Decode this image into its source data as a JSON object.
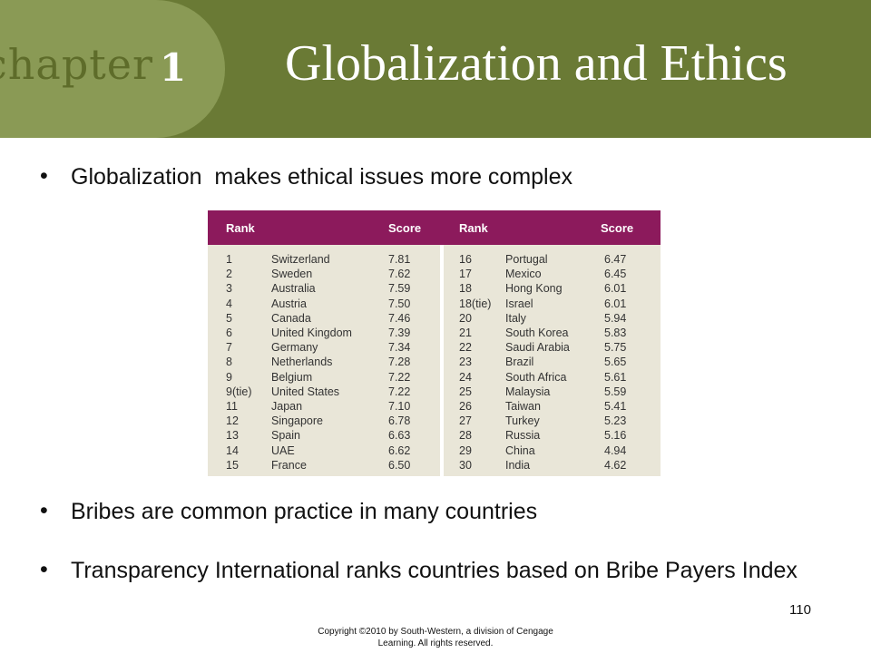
{
  "header": {
    "chapter_word": "chapter",
    "chapter_number": "1",
    "title": "Globalization and Ethics",
    "band_color": "#6a7a35",
    "tab_color": "#8a9a55"
  },
  "bullets": [
    "Globalization  makes ethical issues more complex",
    "Bribes are common practice in many countries",
    "Transparency International ranks countries based on Bribe Payers Index"
  ],
  "table": {
    "header_color": "#8c1a5c",
    "headers": [
      "Rank",
      "Score",
      "Rank",
      "Score"
    ],
    "left_rows": [
      [
        "1",
        "Switzerland",
        "7.81"
      ],
      [
        "2",
        "Sweden",
        "7.62"
      ],
      [
        "3",
        "Australia",
        "7.59"
      ],
      [
        "4",
        "Austria",
        "7.50"
      ],
      [
        "5",
        "Canada",
        "7.46"
      ],
      [
        "6",
        "United Kingdom",
        "7.39"
      ],
      [
        "7",
        "Germany",
        "7.34"
      ],
      [
        "8",
        "Netherlands",
        "7.28"
      ],
      [
        "9",
        "Belgium",
        "7.22"
      ],
      [
        "9(tie)",
        "United States",
        "7.22"
      ],
      [
        "11",
        "Japan",
        "7.10"
      ],
      [
        "12",
        "Singapore",
        "6.78"
      ],
      [
        "13",
        "Spain",
        "6.63"
      ],
      [
        "14",
        "UAE",
        "6.62"
      ],
      [
        "15",
        "France",
        "6.50"
      ]
    ],
    "right_rows": [
      [
        "16",
        "Portugal",
        "6.47"
      ],
      [
        "17",
        "Mexico",
        "6.45"
      ],
      [
        "18",
        "Hong Kong",
        "6.01"
      ],
      [
        "18(tie)",
        "Israel",
        "6.01"
      ],
      [
        "20",
        "Italy",
        "5.94"
      ],
      [
        "21",
        "South Korea",
        "5.83"
      ],
      [
        "22",
        "Saudi Arabia",
        "5.75"
      ],
      [
        "23",
        "Brazil",
        "5.65"
      ],
      [
        "24",
        "South Africa",
        "5.61"
      ],
      [
        "25",
        "Malaysia",
        "5.59"
      ],
      [
        "26",
        "Taiwan",
        "5.41"
      ],
      [
        "27",
        "Turkey",
        "5.23"
      ],
      [
        "28",
        "Russia",
        "5.16"
      ],
      [
        "29",
        "China",
        "4.94"
      ],
      [
        "30",
        "India",
        "4.62"
      ]
    ]
  },
  "footer": {
    "page_number": "110",
    "copyright_line1": "Copyright ©2010 by South-Western, a division of Cengage",
    "copyright_line2": "Learning. All rights reserved."
  }
}
